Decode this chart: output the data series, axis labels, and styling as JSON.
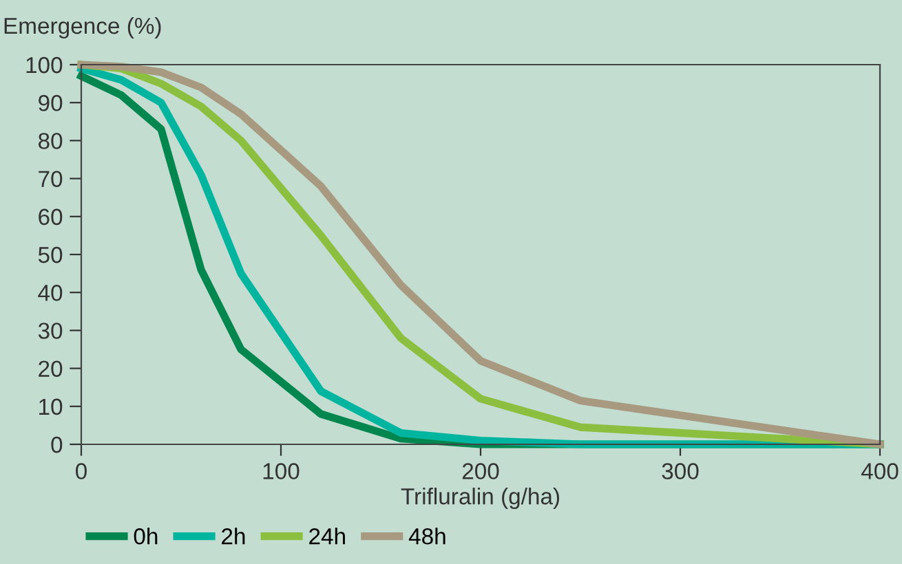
{
  "chart_data": {
    "type": "line",
    "ylabel": "Emergence (%)",
    "xlabel": "Trifluralin (g/ha)",
    "x": [
      0,
      20,
      40,
      60,
      80,
      120,
      160,
      200,
      250,
      400
    ],
    "series": [
      {
        "name": "0h",
        "color": "#00874f",
        "values": [
          97,
          92,
          83,
          46,
          25,
          8,
          1.5,
          0,
          0,
          0
        ]
      },
      {
        "name": "2h",
        "color": "#00b5a0",
        "values": [
          99,
          96,
          90,
          71,
          45,
          14,
          3,
          1,
          0,
          0
        ]
      },
      {
        "name": "24h",
        "color": "#8cbf3f",
        "values": [
          100,
          99,
          95,
          89,
          80,
          55,
          28,
          12,
          4.5,
          0
        ]
      },
      {
        "name": "48h",
        "color": "#a89a80",
        "values": [
          100,
          99.5,
          98,
          94,
          87,
          68,
          42,
          22,
          11.5,
          0
        ]
      }
    ],
    "xlim": [
      0,
      400
    ],
    "xticks": [
      0,
      100,
      200,
      300,
      400
    ],
    "ylim": [
      0,
      100
    ],
    "yticks": [
      0,
      10,
      20,
      30,
      40,
      50,
      60,
      70,
      80,
      90,
      100
    ],
    "grid": false,
    "legend": "bottom left",
    "marker": "none",
    "line_style": "solid"
  }
}
